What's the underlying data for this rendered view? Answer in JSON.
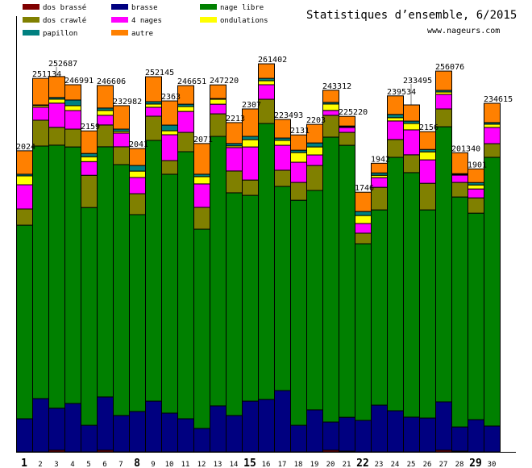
{
  "chart_data": {
    "type": "bar",
    "stacked": true,
    "title": "Statistiques d’ensemble, 6/2015",
    "subtitle": "www.nageurs.com",
    "xlabel": "",
    "ylabel": "",
    "ylim": [
      0,
      293500
    ],
    "grid": false,
    "legend_position": "top-left",
    "categories": [
      "1",
      "2",
      "3",
      "4",
      "5",
      "6",
      "7",
      "8",
      "9",
      "10",
      "11",
      "12",
      "13",
      "14",
      "15",
      "16",
      "17",
      "18",
      "19",
      "20",
      "21",
      "22",
      "23",
      "24",
      "25",
      "26",
      "27",
      "28",
      "29",
      "30"
    ],
    "bold_categories": [
      "1",
      "8",
      "15",
      "22",
      "29"
    ],
    "bar_labels": [
      "2024",
      "251134",
      "252687",
      "246991",
      "2159",
      "246606",
      "232982",
      "2041",
      "252145",
      "2363",
      "246651",
      "2071",
      "247220",
      "2213",
      "2307",
      "261402",
      "223493",
      "2131",
      "2203",
      "243312",
      "225220",
      "1746",
      "1942",
      "239534",
      "233495",
      "2156",
      "256076",
      "201340",
      "1901",
      "234615"
    ],
    "series": [
      {
        "name": "dos brassé",
        "color": "#800000",
        "values": [
          0,
          0,
          1100,
          0,
          0,
          1100,
          0,
          0,
          0,
          0,
          0,
          0,
          0,
          0,
          0,
          0,
          0,
          0,
          0,
          1100,
          500,
          0,
          0,
          0,
          0,
          0,
          1100,
          500,
          0,
          0
        ]
      },
      {
        "name": "brasse",
        "color": "#000080",
        "values": [
          22300,
          35900,
          28300,
          32600,
          17900,
          35900,
          24500,
          27200,
          34200,
          26100,
          22300,
          15800,
          31000,
          24500,
          34200,
          35300,
          41300,
          17900,
          28300,
          19000,
          22800,
          21200,
          31500,
          27700,
          23400,
          22800,
          32600,
          16300,
          21700,
          17400
        ]
      },
      {
        "name": "nage libre",
        "color": "#008000",
        "values": [
          130400,
          170100,
          177200,
          172800,
          146700,
          168500,
          169000,
          132600,
          175600,
          160900,
          179900,
          134200,
          181500,
          150000,
          138600,
          185900,
          137500,
          151600,
          147800,
          191900,
          183200,
          119000,
          131500,
          170700,
          164700,
          140200,
          185300,
          154900,
          139100,
          181000
        ]
      },
      {
        "name": "dos crawlé",
        "color": "#808000",
        "values": [
          10900,
          17400,
          12000,
          12000,
          21700,
          14700,
          12000,
          14100,
          16300,
          9200,
          13000,
          14700,
          15200,
          14700,
          10300,
          16300,
          10900,
          12000,
          16800,
          14700,
          8700,
          7100,
          15200,
          12000,
          12000,
          17900,
          12000,
          9800,
          10300,
          9200
        ]
      },
      {
        "name": "4 nages",
        "color": "#ff00ff",
        "values": [
          16300,
          8700,
          16300,
          12500,
          9200,
          6500,
          9200,
          10900,
          6000,
          17400,
          14100,
          15800,
          6500,
          15800,
          22300,
          9800,
          16800,
          13600,
          7100,
          3300,
          3300,
          6500,
          6500,
          12500,
          16800,
          15800,
          9800,
          4900,
          6000,
          10900
        ]
      },
      {
        "name": "ondulations",
        "color": "#ffff00",
        "values": [
          6000,
          1100,
          2700,
          3300,
          3300,
          3300,
          1100,
          4300,
          2200,
          2700,
          3300,
          4900,
          3300,
          1100,
          4900,
          2700,
          3300,
          6500,
          5400,
          4300,
          500,
          5400,
          1600,
          2200,
          4300,
          5400,
          1600,
          500,
          2700,
          2200
        ]
      },
      {
        "name": "papillon",
        "color": "#008080",
        "values": [
          1100,
          500,
          1100,
          3800,
          2200,
          1600,
          1600,
          3800,
          1600,
          3800,
          1600,
          1600,
          500,
          1600,
          2200,
          1600,
          1600,
          1600,
          2700,
          1100,
          500,
          2700,
          1600,
          2200,
          1600,
          1600,
          1100,
          500,
          1600,
          1100
        ]
      },
      {
        "name": "autre",
        "color": "#ff8000",
        "values": [
          15800,
          17900,
          14100,
          10300,
          15200,
          15200,
          15800,
          11400,
          16800,
          16300,
          12500,
          20700,
          9200,
          14100,
          18500,
          9800,
          12500,
          10300,
          12500,
          8200,
          6500,
          13000,
          6500,
          12500,
          10900,
          12000,
          13000,
          14100,
          9200,
          13000
        ]
      }
    ]
  }
}
